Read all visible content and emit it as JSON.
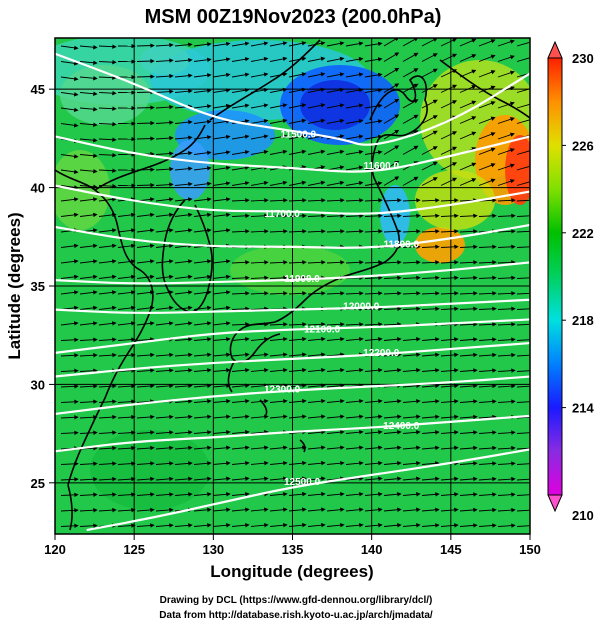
{
  "title": "MSM 00Z19Nov2023 (200.0hPa)",
  "chart_data": {
    "type": "map",
    "title": "MSM 00Z19Nov2023 (200.0hPa)",
    "xlabel": "Longitude (degrees)",
    "ylabel": "Latitude  (degrees)",
    "xlim": [
      120,
      150
    ],
    "ylim": [
      22.4,
      47.6
    ],
    "x_ticks": [
      120,
      125,
      130,
      135,
      140,
      145,
      150
    ],
    "y_ticks": [
      25,
      30,
      35,
      40,
      45
    ],
    "x_tick_labels": [
      "120",
      "125",
      "130",
      "135",
      "140",
      "145",
      "150"
    ],
    "y_tick_labels": [
      "25",
      "30",
      "35",
      "40",
      "45"
    ],
    "grid": true,
    "colorbar": {
      "min": 210,
      "max": 230,
      "labels": [
        "210",
        "214",
        "218",
        "222",
        "226",
        "230"
      ],
      "label_values": [
        210,
        214,
        218,
        222,
        226,
        230
      ],
      "colors": [
        "#e000e0",
        "#8a2be2",
        "#1a1aff",
        "#0080ff",
        "#00e0e0",
        "#00d060",
        "#00c000",
        "#80e000",
        "#e0e000",
        "#ff9000",
        "#ff2000"
      ]
    },
    "contours": [
      {
        "value": 11500,
        "label": "11500.0",
        "points": [
          [
            120,
            46.8
          ],
          [
            125,
            45.3
          ],
          [
            130,
            43.5
          ],
          [
            134,
            43.0
          ],
          [
            138,
            42.5
          ],
          [
            140,
            42.0
          ],
          [
            145,
            43.3
          ],
          [
            150,
            45.8
          ]
        ]
      },
      {
        "value": 11600,
        "label": "11600.0",
        "points": [
          [
            120,
            42.6
          ],
          [
            125,
            41.7
          ],
          [
            130,
            41.2
          ],
          [
            135,
            41.0
          ],
          [
            140,
            40.7
          ],
          [
            145,
            41.6
          ],
          [
            150,
            42.6
          ]
        ]
      },
      {
        "value": 11700,
        "label": "11700.0",
        "points": [
          [
            120,
            40.1
          ],
          [
            125,
            39.3
          ],
          [
            130,
            38.8
          ],
          [
            135,
            38.8
          ],
          [
            140,
            38.6
          ],
          [
            145,
            39.1
          ],
          [
            150,
            39.8
          ]
        ]
      },
      {
        "value": 11800,
        "label": "11800.0",
        "points": [
          [
            120,
            38.0
          ],
          [
            125,
            37.3
          ],
          [
            130,
            37.0
          ],
          [
            135,
            37.0
          ],
          [
            140,
            36.9
          ],
          [
            145,
            37.4
          ],
          [
            150,
            38.1
          ]
        ]
      },
      {
        "value": 11900,
        "label": "11900.0",
        "points": [
          [
            120,
            35.3
          ],
          [
            125,
            35.1
          ],
          [
            130,
            35.2
          ],
          [
            135,
            35.3
          ],
          [
            140,
            35.5
          ],
          [
            145,
            35.8
          ],
          [
            150,
            36.2
          ]
        ]
      },
      {
        "value": 12000,
        "label": "12000.0",
        "points": [
          [
            120,
            33.8
          ],
          [
            125,
            33.6
          ],
          [
            130,
            33.7
          ],
          [
            135,
            33.8
          ],
          [
            140,
            33.9
          ],
          [
            145,
            34.1
          ],
          [
            150,
            34.3
          ]
        ]
      },
      {
        "value": 12100,
        "label": "12100.0",
        "points": [
          [
            120,
            31.6
          ],
          [
            125,
            32.1
          ],
          [
            130,
            32.6
          ],
          [
            135,
            32.8
          ],
          [
            140,
            32.9
          ],
          [
            145,
            33.1
          ],
          [
            150,
            33.3
          ]
        ]
      },
      {
        "value": 12200,
        "label": "12200.0",
        "points": [
          [
            120,
            30.4
          ],
          [
            125,
            30.8
          ],
          [
            130,
            31.1
          ],
          [
            135,
            31.3
          ],
          [
            140,
            31.5
          ],
          [
            145,
            31.8
          ],
          [
            150,
            32.1
          ]
        ]
      },
      {
        "value": 12300,
        "label": "12300.0",
        "points": [
          [
            120,
            28.5
          ],
          [
            125,
            29.0
          ],
          [
            130,
            29.4
          ],
          [
            135,
            29.7
          ],
          [
            140,
            29.9
          ],
          [
            145,
            30.1
          ],
          [
            150,
            30.4
          ]
        ]
      },
      {
        "value": 12400,
        "label": "12400.0",
        "points": [
          [
            120,
            26.6
          ],
          [
            125,
            27.1
          ],
          [
            130,
            27.3
          ],
          [
            135,
            27.6
          ],
          [
            140,
            27.8
          ],
          [
            145,
            28.1
          ],
          [
            150,
            28.4
          ]
        ]
      },
      {
        "value": 12500,
        "label": "12500.0",
        "points": [
          [
            122,
            22.6
          ],
          [
            126,
            23.2
          ],
          [
            130,
            23.9
          ],
          [
            135,
            24.8
          ],
          [
            140,
            25.4
          ],
          [
            145,
            26.0
          ],
          [
            150,
            26.7
          ]
        ]
      }
    ]
  },
  "credits": {
    "line1": "Drawing by DCL (https://www.gfd-dennou.org/library/dcl/)",
    "line2": "Data from http://database.rish.kyoto-u.ac.jp/arch/jmadata/"
  }
}
